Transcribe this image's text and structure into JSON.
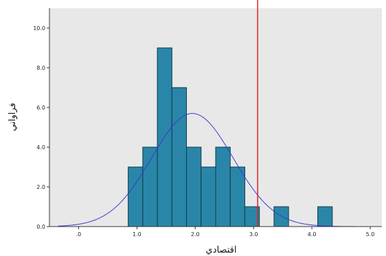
{
  "chart_data": {
    "type": "bar",
    "title": "",
    "xlabel": "اقتصادي",
    "ylabel": "فراواني",
    "xlim": [
      -0.5,
      5.2
    ],
    "ylim": [
      0,
      11
    ],
    "xticks": [
      {
        "value": 0,
        "label": ".0"
      },
      {
        "value": 1,
        "label": "1.0"
      },
      {
        "value": 2,
        "label": "2.0"
      },
      {
        "value": 3,
        "label": "3.0"
      },
      {
        "value": 4,
        "label": "4.0"
      },
      {
        "value": 5,
        "label": "5.0"
      }
    ],
    "yticks": [
      {
        "value": 0,
        "label": "0.0"
      },
      {
        "value": 2,
        "label": "2.0"
      },
      {
        "value": 4,
        "label": "4.0"
      },
      {
        "value": 6,
        "label": "6.0"
      },
      {
        "value": 8,
        "label": "8.0"
      },
      {
        "value": 10,
        "label": "10.0"
      }
    ],
    "bins": [
      {
        "x0": 0.85,
        "x1": 1.1,
        "count": 3
      },
      {
        "x0": 1.1,
        "x1": 1.35,
        "count": 4
      },
      {
        "x0": 1.35,
        "x1": 1.6,
        "count": 9
      },
      {
        "x0": 1.6,
        "x1": 1.85,
        "count": 7
      },
      {
        "x0": 1.85,
        "x1": 2.1,
        "count": 4
      },
      {
        "x0": 2.1,
        "x1": 2.35,
        "count": 3
      },
      {
        "x0": 2.35,
        "x1": 2.6,
        "count": 4
      },
      {
        "x0": 2.6,
        "x1": 2.85,
        "count": 3
      },
      {
        "x0": 2.85,
        "x1": 3.1,
        "count": 1
      },
      {
        "x0": 3.35,
        "x1": 3.6,
        "count": 1
      },
      {
        "x0": 4.1,
        "x1": 4.35,
        "count": 1
      }
    ],
    "normal_curve": {
      "mean": 1.95,
      "sd": 0.7,
      "n": 40,
      "bin_width": 0.25
    },
    "reference_line": {
      "x": 3.07
    },
    "colors": {
      "plot_background": "#e8e8e8",
      "bar_fill": "#2a86a8",
      "bar_stroke": "#0d3a4a",
      "curve": "#3a3ad0",
      "reference_line": "#e02020"
    }
  }
}
